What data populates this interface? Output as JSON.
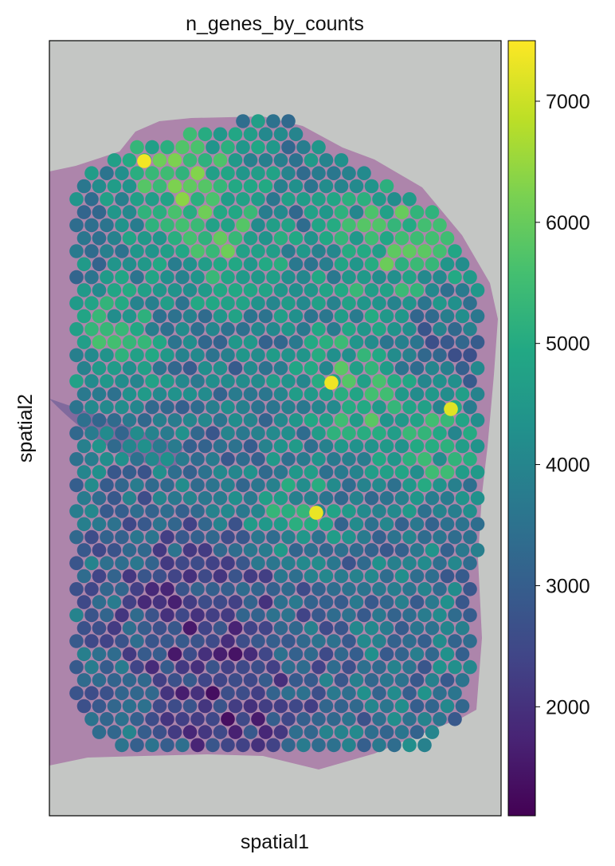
{
  "chart_data": {
    "type": "scatter",
    "title": "n_genes_by_counts",
    "xlabel": "spatial1",
    "ylabel": "spatial2",
    "x_ticks": [],
    "y_ticks": [],
    "background": "H&E stained tissue section image",
    "colormap": "viridis",
    "colorbar": {
      "min": 1100,
      "max": 7500,
      "ticks": [
        2000,
        3000,
        4000,
        5000,
        6000,
        7000
      ],
      "tick_labels": [
        "2000",
        "3000",
        "4000",
        "5000",
        "6000",
        "7000"
      ]
    },
    "spot_grid": {
      "layout": "hexagonal",
      "rows": 50,
      "note": "Visium spots colored by n_genes_by_counts; a few illustrative high-value spots listed below"
    },
    "highlighted_spots": [
      {
        "value": 7400,
        "region": "upper-left"
      },
      {
        "value": 7350,
        "region": "center"
      },
      {
        "value": 7300,
        "region": "lower-center"
      },
      {
        "value": 7200,
        "region": "right"
      }
    ]
  }
}
